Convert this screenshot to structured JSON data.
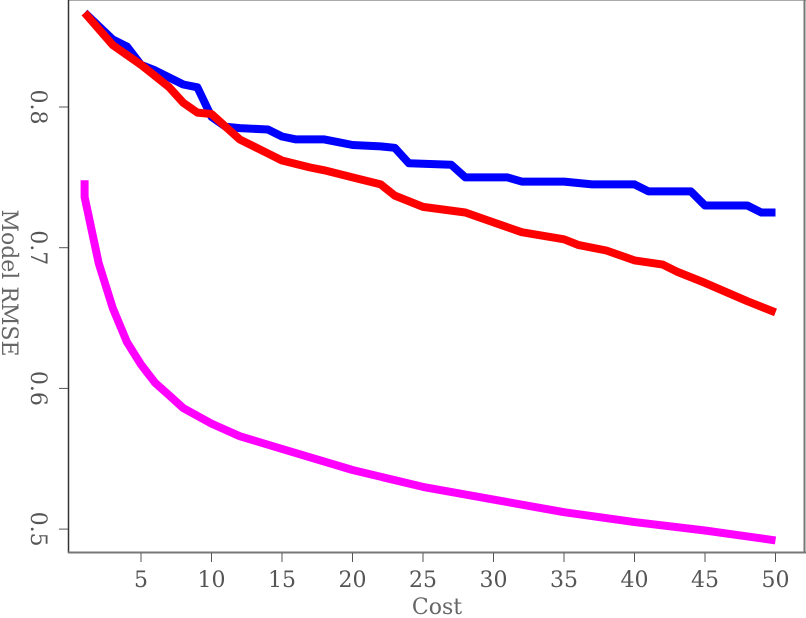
{
  "chart_data": {
    "type": "line",
    "title": "",
    "xlabel": "Cost",
    "ylabel": "Model RMSE",
    "xlim": [
      0.4,
      51
    ],
    "ylim": [
      0.475,
      0.875
    ],
    "xticks": [
      5,
      10,
      15,
      20,
      25,
      30,
      35,
      40,
      45,
      50
    ],
    "xtick_labels": [
      "5",
      "10",
      "15",
      "20",
      "25",
      "30",
      "35",
      "40",
      "45",
      "50"
    ],
    "yticks": [
      0.5,
      0.6,
      0.7,
      0.8
    ],
    "ytick_labels": [
      "0.5",
      "0.6",
      "0.7",
      "0.8"
    ],
    "grid": false,
    "legend": null,
    "series": [
      {
        "name": "blue",
        "color": "#0000ff",
        "x": [
          1,
          3,
          4,
          5,
          6,
          7,
          8,
          9,
          10,
          11,
          12,
          14,
          15,
          16,
          18,
          19,
          20,
          22,
          23,
          24,
          27,
          28,
          31,
          32,
          35,
          37,
          40,
          41,
          44,
          45,
          48,
          49,
          50
        ],
        "y": [
          0.867,
          0.848,
          0.843,
          0.83,
          0.826,
          0.821,
          0.816,
          0.814,
          0.793,
          0.786,
          0.785,
          0.784,
          0.779,
          0.777,
          0.777,
          0.775,
          0.773,
          0.772,
          0.771,
          0.76,
          0.759,
          0.75,
          0.75,
          0.747,
          0.747,
          0.745,
          0.745,
          0.74,
          0.74,
          0.73,
          0.73,
          0.725,
          0.725
        ]
      },
      {
        "name": "red",
        "color": "#ff0000",
        "x": [
          1,
          3,
          5,
          7,
          8,
          9,
          10,
          12,
          14,
          15,
          17,
          18,
          20,
          22,
          23,
          25,
          28,
          30,
          32,
          35,
          36,
          38,
          40,
          42,
          43,
          45,
          48,
          50
        ],
        "y": [
          0.867,
          0.844,
          0.83,
          0.814,
          0.803,
          0.796,
          0.795,
          0.777,
          0.767,
          0.762,
          0.757,
          0.755,
          0.75,
          0.745,
          0.737,
          0.729,
          0.725,
          0.718,
          0.711,
          0.706,
          0.702,
          0.698,
          0.691,
          0.688,
          0.683,
          0.675,
          0.662,
          0.654
        ]
      },
      {
        "name": "magenta",
        "color": "#ff00ff",
        "x": [
          1,
          1,
          2,
          3,
          4,
          5,
          6,
          7,
          8,
          10,
          12,
          15,
          20,
          25,
          30,
          35,
          40,
          45,
          50
        ],
        "y": [
          0.748,
          0.736,
          0.689,
          0.657,
          0.633,
          0.617,
          0.604,
          0.595,
          0.586,
          0.575,
          0.566,
          0.557,
          0.542,
          0.53,
          0.521,
          0.512,
          0.505,
          0.499,
          0.492
        ]
      }
    ]
  }
}
